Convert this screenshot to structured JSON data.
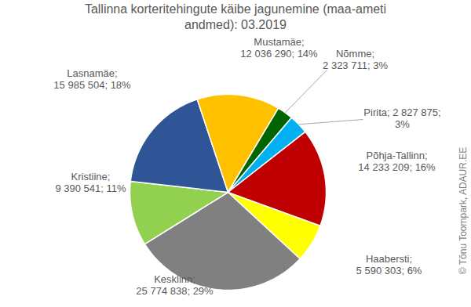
{
  "chart_data": {
    "type": "pie",
    "title": "Tallinna korteritehingute käibe jagunemine (maa-ameti\nandmed): 03.2019",
    "categories": [
      "Haabersti",
      "Kesklinn",
      "Kristiine",
      "Lasnamäe",
      "Mustamäe",
      "Nõmme",
      "Pirita",
      "Põhja-Tallinn"
    ],
    "values": [
      5590303,
      25774838,
      9390541,
      15985504,
      12036290,
      2323711,
      2827875,
      14233209
    ],
    "value_labels": [
      "Haabersti;\n5 590 303; 6%",
      "Kesklinn;\n25 774 838; 29%",
      "Kristiine;\n9 390 541; 11%",
      "Lasnamäe;\n15 985 504; 18%",
      "Mustamäe;\n12 036 290; 14%",
      "Nõmme;\n2 323 711; 3%",
      "Pirita; 2 827 875;\n3%",
      "Põhja-Tallinn;\n14 233 209; 16%"
    ],
    "colors": [
      "#ffff00",
      "#808080",
      "#92d050",
      "#2f5597",
      "#ffc000",
      "#006400",
      "#00b0f0",
      "#c00000"
    ],
    "data_labels": true,
    "annotations": [
      "© Tõnu Toompark, ADAUR.EE"
    ]
  }
}
